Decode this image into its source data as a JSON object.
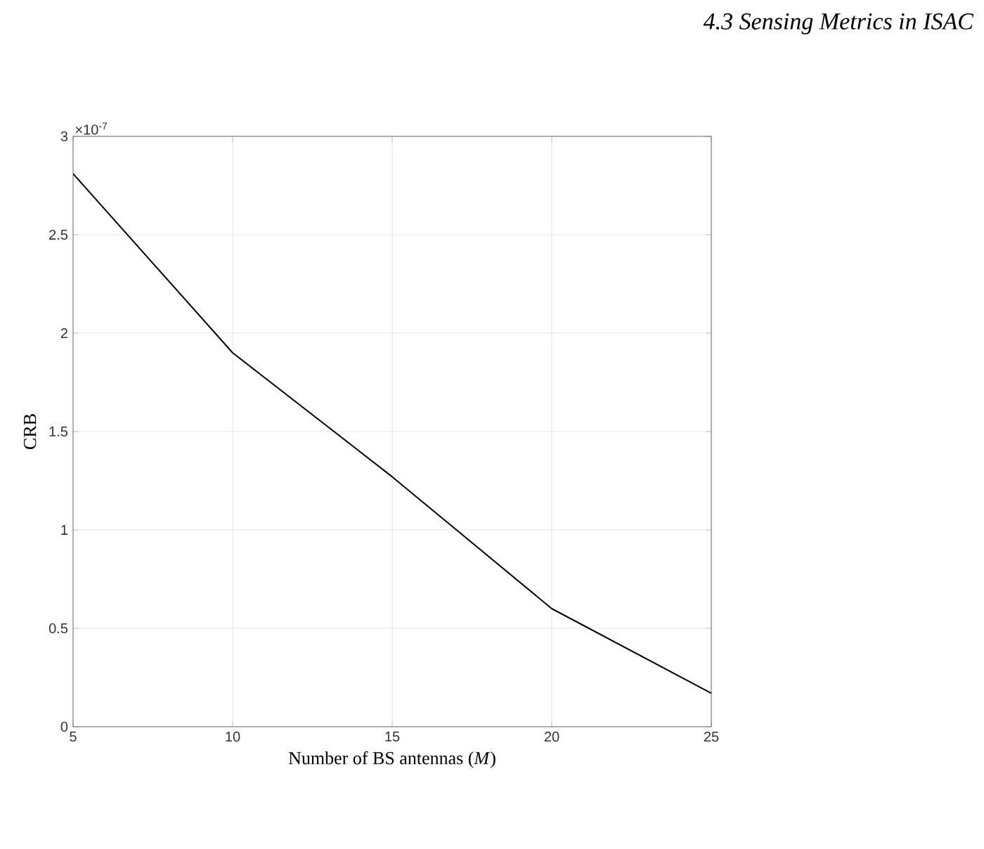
{
  "chart_data": {
    "type": "line",
    "xlabel": "Number of BS antennas (*M*)",
    "ylabel": "CRB",
    "annotations": [
      "4.3 Sensing Metrics in ISAC",
      "×10$^{-7}$"
    ],
    "x": [
      5,
      10,
      15,
      20,
      25
    ],
    "series": [
      {
        "color": "#000000",
        "values": [
          2.81,
          1.9,
          1.27,
          0.6,
          0.17
        ]
      }
    ],
    "xlim": [
      5,
      25
    ],
    "ylim": [
      0,
      3
    ],
    "xticks": [
      5,
      10,
      15,
      20,
      25
    ],
    "yticks": [
      0,
      0.5,
      1,
      1.5,
      2,
      2.5,
      3
    ],
    "grid": true,
    "marker": "none",
    "line_style": "solid"
  }
}
